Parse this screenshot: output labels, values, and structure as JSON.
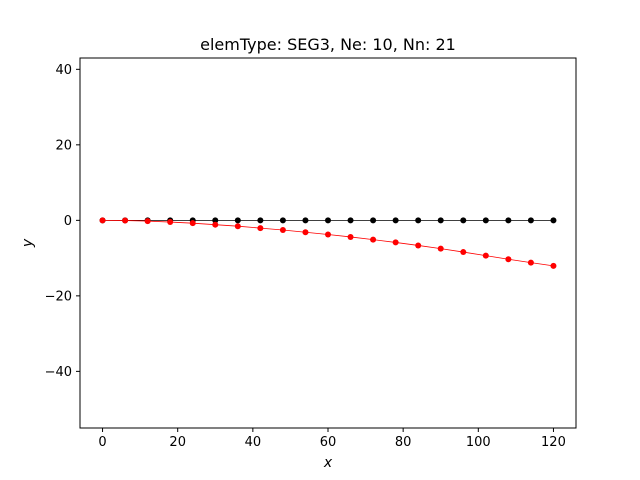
{
  "chart_data": {
    "type": "line",
    "title": "elemType: SEG3, Ne: 10, Nn: 21",
    "xlabel": "x",
    "ylabel": "y",
    "xlim": [
      -6,
      126
    ],
    "ylim": [
      -55,
      43
    ],
    "xticks": [
      0,
      20,
      40,
      60,
      80,
      100,
      120
    ],
    "yticks": [
      -40,
      -20,
      0,
      20,
      40
    ],
    "xtick_labels": [
      "0",
      "20",
      "40",
      "60",
      "80",
      "100",
      "120"
    ],
    "ytick_labels": [
      "−40",
      "−20",
      "0",
      "20",
      "40"
    ],
    "grid": false,
    "x": [
      0,
      6,
      12,
      18,
      24,
      30,
      36,
      42,
      48,
      54,
      60,
      66,
      72,
      78,
      84,
      90,
      96,
      102,
      108,
      114,
      120
    ],
    "series": [
      {
        "color": "#000000",
        "values": [
          0,
          0,
          0,
          0,
          0,
          0,
          0,
          0,
          0,
          0,
          0,
          0,
          0,
          0,
          0,
          0,
          0,
          0,
          0,
          0,
          0
        ]
      },
      {
        "color": "#ff0000",
        "values": [
          0,
          -0.05,
          -0.2,
          -0.45,
          -0.75,
          -1.15,
          -1.55,
          -2.05,
          -2.55,
          -3.15,
          -3.75,
          -4.4,
          -5.1,
          -5.85,
          -6.65,
          -7.5,
          -8.4,
          -9.35,
          -10.3,
          -11.2,
          -12.05
        ]
      }
    ]
  }
}
